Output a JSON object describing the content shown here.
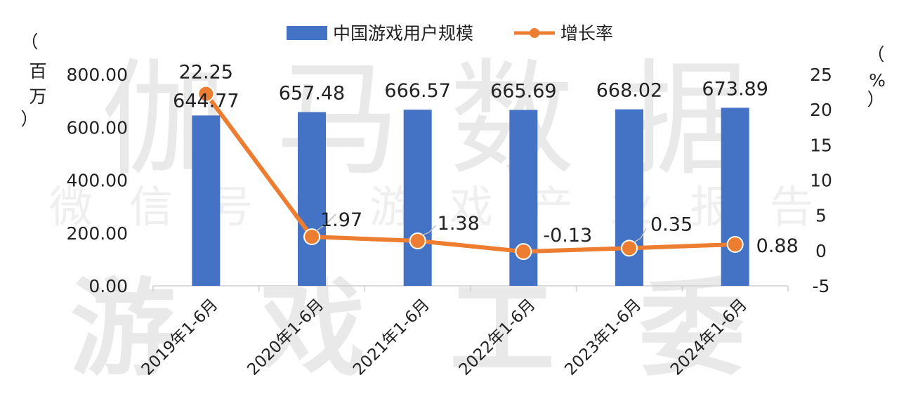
{
  "colors": {
    "bar": "#4472c4",
    "line": "#ed7d31",
    "axis": "#cfcfcf",
    "text": "#222222"
  },
  "watermark": {
    "line1": "伽马数据",
    "line2": "微信号：游戏产业报告",
    "line3": "游戏工委"
  },
  "left_unit": [
    "（",
    "百",
    "万",
    "）"
  ],
  "right_unit": [
    "（",
    "%",
    "）"
  ],
  "chart_data": {
    "type": "bar",
    "categories": [
      "2019年1-6月",
      "2020年1-6月",
      "2021年1-6月",
      "2022年1-6月",
      "2023年1-6月",
      "2024年1-6月"
    ],
    "series": [
      {
        "name": "中国游戏用户规模",
        "type": "bar",
        "axis": "left",
        "values": [
          644.77,
          657.48,
          666.57,
          665.69,
          668.02,
          673.89
        ]
      },
      {
        "name": "增长率",
        "type": "line",
        "axis": "right",
        "values": [
          22.25,
          1.97,
          1.38,
          -0.13,
          0.35,
          0.88
        ]
      }
    ],
    "ylim_left": [
      0,
      800
    ],
    "yticks_left": [
      "0.00",
      "200.00",
      "400.00",
      "600.00",
      "800.00"
    ],
    "ylim_right": [
      -5,
      25
    ],
    "yticks_right": [
      "-5",
      "0",
      "5",
      "10",
      "15",
      "20",
      "25"
    ],
    "bar_labels": [
      "644.77",
      "657.48",
      "666.57",
      "665.69",
      "668.02",
      "673.89"
    ],
    "line_labels": [
      "22.25",
      "1.97",
      "1.38",
      "-0.13",
      "0.35",
      "0.88"
    ],
    "legend_position": "top",
    "grid": false
  }
}
